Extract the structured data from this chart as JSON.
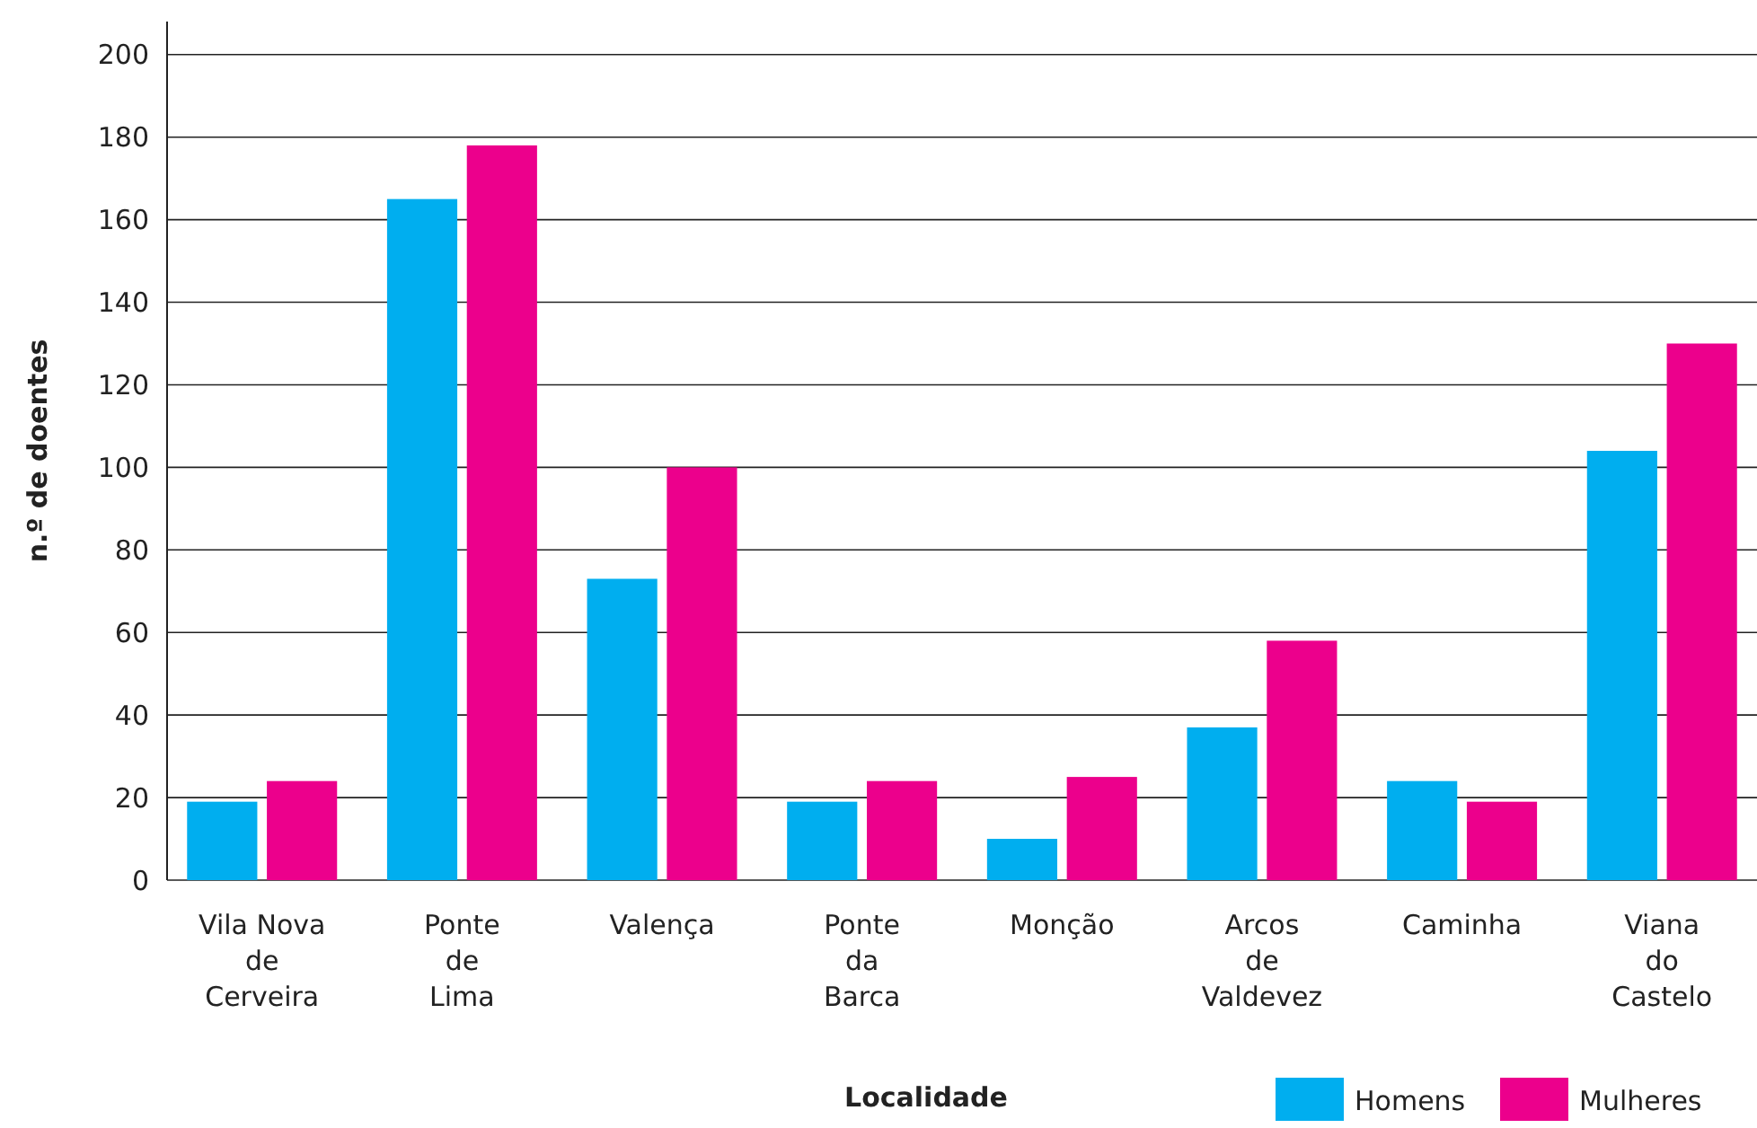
{
  "chart_data": {
    "type": "bar",
    "xlabel": "Localidade",
    "ylabel": "n.º de doentes",
    "categories": [
      "Vila Nova\nde\nCerveira",
      "Ponte\nde\nLima",
      "Valença",
      "Ponte\nda\nBarca",
      "Monção",
      "Arcos\nde\nValdevez",
      "Caminha",
      "Viana\ndo\nCastelo"
    ],
    "series": [
      {
        "name": "Homens",
        "color": "#00aeef",
        "values": [
          19,
          165,
          73,
          19,
          10,
          37,
          24,
          104
        ]
      },
      {
        "name": "Mulheres",
        "color": "#ec008c",
        "values": [
          24,
          178,
          100,
          24,
          25,
          58,
          19,
          130
        ]
      }
    ],
    "ylim": [
      0,
      208
    ],
    "yticks": [
      0,
      20,
      40,
      60,
      80,
      100,
      120,
      140,
      160,
      180,
      200
    ],
    "grid": "y",
    "legend": "bottom right"
  }
}
